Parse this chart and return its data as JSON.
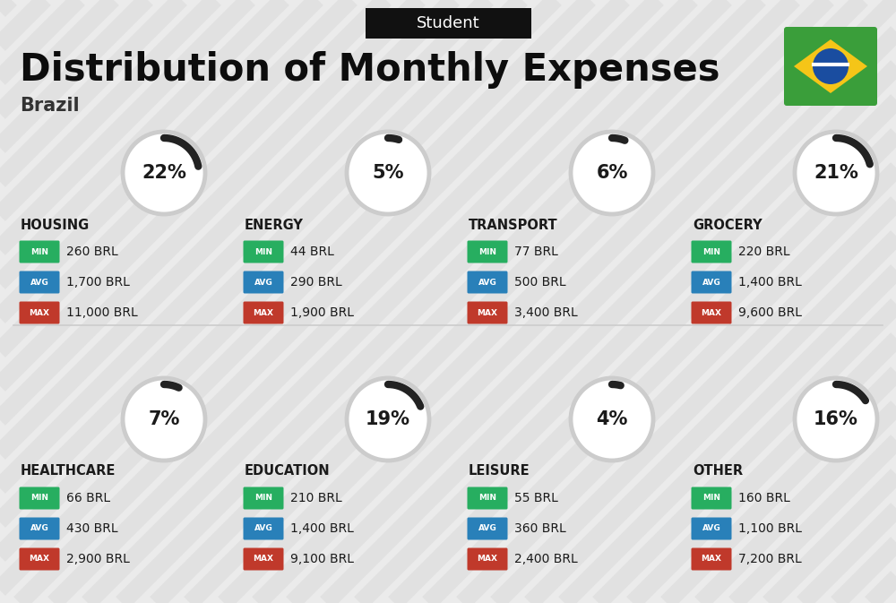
{
  "title": "Distribution of Monthly Expenses",
  "subtitle": "Brazil",
  "header_label": "Student",
  "background_color": "#ebebeb",
  "categories": [
    {
      "name": "HOUSING",
      "pct": 22,
      "min_val": "260 BRL",
      "avg_val": "1,700 BRL",
      "max_val": "11,000 BRL",
      "col": 0,
      "row": 0
    },
    {
      "name": "ENERGY",
      "pct": 5,
      "min_val": "44 BRL",
      "avg_val": "290 BRL",
      "max_val": "1,900 BRL",
      "col": 1,
      "row": 0
    },
    {
      "name": "TRANSPORT",
      "pct": 6,
      "min_val": "77 BRL",
      "avg_val": "500 BRL",
      "max_val": "3,400 BRL",
      "col": 2,
      "row": 0
    },
    {
      "name": "GROCERY",
      "pct": 21,
      "min_val": "220 BRL",
      "avg_val": "1,400 BRL",
      "max_val": "9,600 BRL",
      "col": 3,
      "row": 0
    },
    {
      "name": "HEALTHCARE",
      "pct": 7,
      "min_val": "66 BRL",
      "avg_val": "430 BRL",
      "max_val": "2,900 BRL",
      "col": 0,
      "row": 1
    },
    {
      "name": "EDUCATION",
      "pct": 19,
      "min_val": "210 BRL",
      "avg_val": "1,400 BRL",
      "max_val": "9,100 BRL",
      "col": 1,
      "row": 1
    },
    {
      "name": "LEISURE",
      "pct": 4,
      "min_val": "55 BRL",
      "avg_val": "360 BRL",
      "max_val": "2,400 BRL",
      "col": 2,
      "row": 1
    },
    {
      "name": "OTHER",
      "pct": 16,
      "min_val": "160 BRL",
      "avg_val": "1,100 BRL",
      "max_val": "7,200 BRL",
      "col": 3,
      "row": 1
    }
  ],
  "min_color": "#27ae60",
  "avg_color": "#2980b9",
  "max_color": "#c0392b",
  "label_color": "#ffffff",
  "text_color": "#1a1a1a",
  "circle_bg_color": "#ffffff",
  "circle_edge_color": "#cccccc",
  "arc_color": "#222222",
  "header_bg": "#111111",
  "header_fg": "#ffffff",
  "title_color": "#0d0d0d",
  "subtitle_color": "#333333",
  "stripe_color": "#d5d5d5",
  "divider_color": "#cccccc"
}
